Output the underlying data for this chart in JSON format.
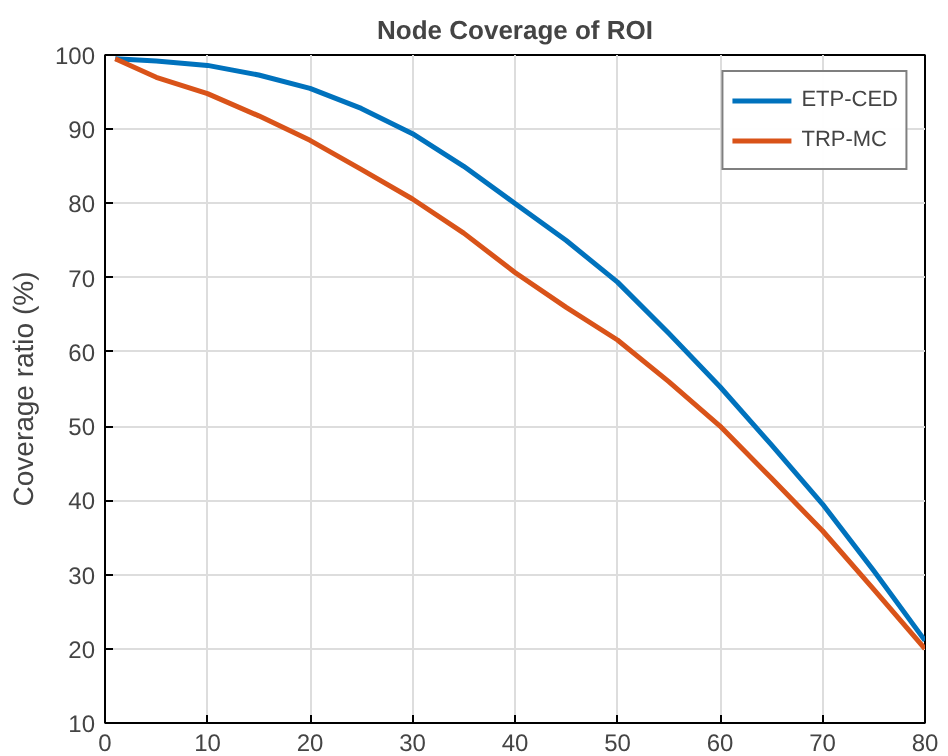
{
  "chart_data": {
    "type": "line",
    "title": "Node Coverage of ROI",
    "ylabel": "Coverage ratio (%)",
    "x": [
      1,
      5,
      10,
      15,
      20,
      25,
      30,
      35,
      40,
      45,
      50,
      55,
      60,
      65,
      70,
      75,
      80
    ],
    "series": [
      {
        "name": "ETP-CED",
        "color": "#0072bd",
        "values": [
          99.5,
          99.2,
          98.6,
          97.3,
          95.5,
          92.8,
          89.4,
          85,
          80,
          75,
          69.4,
          62.5,
          55.3,
          47.5,
          39.5,
          30.5,
          21.1
        ]
      },
      {
        "name": "TRP-MC",
        "color": "#d95319",
        "values": [
          99.5,
          97,
          94.8,
          91.8,
          88.5,
          84.6,
          80.6,
          76,
          70.7,
          66,
          61.6,
          56,
          50,
          43,
          35.9,
          28,
          20
        ]
      }
    ],
    "xlim": [
      0,
      80
    ],
    "ylim": [
      10,
      100
    ],
    "xticks": [
      0,
      10,
      20,
      30,
      40,
      50,
      60,
      70,
      80
    ],
    "yticks": [
      10,
      20,
      30,
      40,
      50,
      60,
      70,
      80,
      90,
      100
    ],
    "grid": true,
    "legend": "top right",
    "marker": "none",
    "line_style": "solid"
  }
}
